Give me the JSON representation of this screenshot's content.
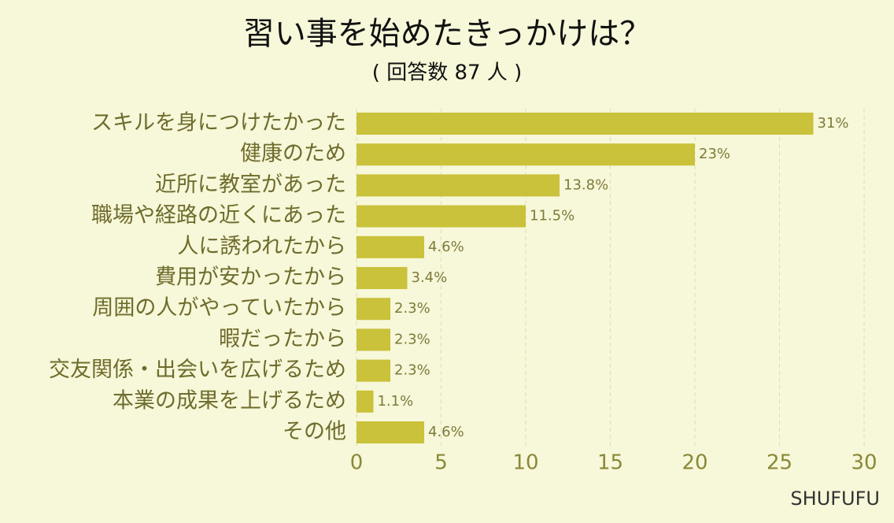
{
  "chart_data": {
    "type": "bar",
    "orientation": "horizontal",
    "title": "習い事を始めたきっかけは？",
    "subtitle": "( 回答数 87 人 )",
    "categories": [
      "スキルを身につけたかった",
      "健康のため",
      "近所に教室があった",
      "職場や経路の近くにあった",
      "人に誘われたから",
      "費用が安かったから",
      "周囲の人がやっていたから",
      "暇だったから",
      "交友関係・出会いを広げるため",
      "本業の成果を上げるため",
      "その他"
    ],
    "values": [
      27,
      20,
      12,
      10,
      4,
      3,
      2,
      2,
      2,
      1,
      4
    ],
    "value_labels": [
      "31%",
      "23%",
      "13.8%",
      "11.5%",
      "4.6%",
      "3.4%",
      "2.3%",
      "2.3%",
      "2.3%",
      "1.1%",
      "4.6%"
    ],
    "color": "#c9c23a",
    "xlim": [
      0,
      30
    ],
    "xticks": [
      0,
      5,
      10,
      15,
      20,
      25,
      30
    ],
    "grid": true,
    "source": "SHUFUFU"
  }
}
